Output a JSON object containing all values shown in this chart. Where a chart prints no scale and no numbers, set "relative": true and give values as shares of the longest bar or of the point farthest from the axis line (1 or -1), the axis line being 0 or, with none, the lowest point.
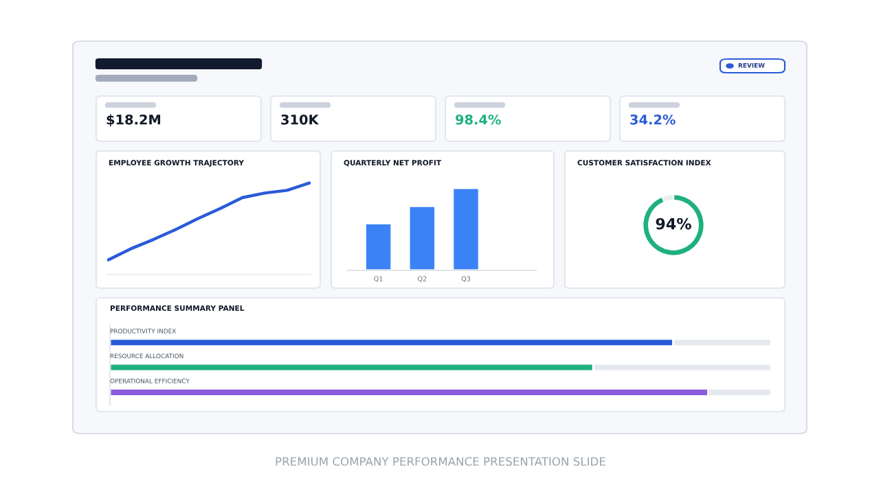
{
  "chart_data": [
    {
      "type": "other",
      "annotations": [
        "REVIEW",
        "$18.2M",
        "310K",
        "98.4%",
        "34.2%",
        "PREMIUM COMPANY PERFORMANCE PRESENTATION SLIDE"
      ]
    },
    {
      "type": "line",
      "title": "EMPLOYEE GROWTH TRAJECTORY",
      "relative": true,
      "categories": [
        null,
        null,
        null,
        null,
        null,
        null,
        null,
        null,
        null,
        null
      ],
      "series": [
        {
          "color": "#2a5bd7",
          "values": [
            0.16,
            0.28,
            0.38,
            0.49,
            0.61,
            0.72,
            0.84,
            0.89,
            0.92,
            1.0
          ]
        }
      ]
    },
    {
      "type": "bar",
      "title": "QUARTERLY NET PROFIT",
      "relative": true,
      "categories": [
        "Q1",
        "Q2",
        "Q3"
      ],
      "values": [
        0.57,
        0.78,
        1.0
      ],
      "color": "#3b82f6"
    },
    {
      "type": "donut",
      "title": "CUSTOMER SATISFACTION INDEX",
      "categories": [
        null,
        null
      ],
      "values": [
        94,
        6
      ],
      "colors": [
        "#1fb07e",
        "#e9eef2"
      ],
      "value_labels": [
        "94%",
        null
      ]
    },
    {
      "type": "bar",
      "title": "PERFORMANCE SUMMARY PANEL",
      "orientation": "horizontal",
      "stacked": true,
      "relative": true,
      "categories": [
        "PRODUCTIVITY INDEX",
        "RESOURCE ALLOCATION",
        "OPERATIONAL EFFICIENCY"
      ],
      "series": [
        {
          "colors": [
            "#2a5bd7",
            "#1fb07e",
            "#8a5cdb"
          ],
          "values": [
            0.852,
            0.731,
            0.905
          ]
        },
        {
          "color": "#e5e9ef",
          "values": [
            0.148,
            0.269,
            0.095
          ]
        }
      ]
    }
  ]
}
